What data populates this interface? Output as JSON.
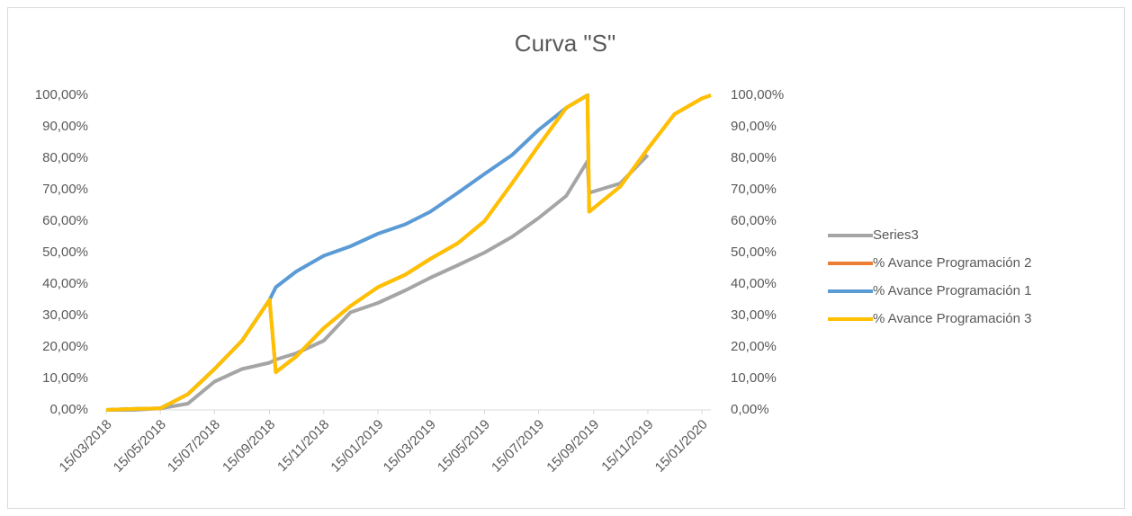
{
  "chart_data": {
    "type": "line",
    "title": "Curva \"S\"",
    "x": [
      "15/03/2018",
      "15/04/2018",
      "15/05/2018",
      "15/06/2018",
      "15/07/2018",
      "15/08/2018",
      "15/09/2018",
      "22/09/2018",
      "15/10/2018",
      "15/11/2018",
      "15/12/2018",
      "15/01/2019",
      "15/02/2019",
      "15/03/2019",
      "15/04/2019",
      "15/05/2019",
      "15/06/2019",
      "15/07/2019",
      "15/08/2019",
      "08/09/2019",
      "10/09/2019",
      "15/10/2019",
      "15/11/2019",
      "15/12/2019",
      "15/01/2020",
      "25/01/2020"
    ],
    "series": [
      {
        "name": "Series3",
        "color": "#a5a5a5",
        "values": [
          0,
          0,
          0.5,
          2,
          9,
          13,
          15,
          16,
          18,
          22,
          31,
          34,
          38,
          42,
          46,
          50,
          55,
          61,
          68,
          79,
          69,
          72,
          81,
          null,
          null,
          null
        ]
      },
      {
        "name": "% Avance Programación 2",
        "color": "#ed7d31",
        "values": [
          0,
          0.3,
          0.5,
          5,
          13,
          22,
          35,
          12,
          17,
          26,
          33,
          39,
          43,
          48,
          53,
          60,
          72,
          84,
          96,
          100,
          63,
          71,
          83,
          94,
          99,
          100
        ]
      },
      {
        "name": "% Avance Programación 1",
        "color": "#5b9bd5",
        "values": [
          0,
          0.3,
          0.5,
          5,
          13,
          22,
          35,
          39,
          44,
          49,
          52,
          56,
          59,
          63,
          69,
          75,
          81,
          89,
          96,
          100,
          100,
          null,
          null,
          null,
          null,
          null
        ]
      },
      {
        "name": "% Avance Programación 3",
        "color": "#ffc000",
        "values": [
          0,
          0.3,
          0.5,
          5,
          13,
          22,
          35,
          12,
          17,
          26,
          33,
          39,
          43,
          48,
          53,
          60,
          72,
          84,
          96,
          100,
          63,
          71,
          83,
          94,
          99,
          100
        ]
      }
    ],
    "xlim": [
      "15/03/2018",
      "25/01/2020"
    ],
    "xticks": [
      "15/03/2018",
      "15/05/2018",
      "15/07/2018",
      "15/09/2018",
      "15/11/2018",
      "15/01/2019",
      "15/03/2019",
      "15/05/2019",
      "15/07/2019",
      "15/09/2019",
      "15/11/2019",
      "15/01/2020"
    ],
    "ylim": [
      0,
      100
    ],
    "yticks": [
      {
        "value": 0,
        "label": "0,00%"
      },
      {
        "value": 10,
        "label": "10,00%"
      },
      {
        "value": 20,
        "label": "20,00%"
      },
      {
        "value": 30,
        "label": "30,00%"
      },
      {
        "value": 40,
        "label": "40,00%"
      },
      {
        "value": 50,
        "label": "50,00%"
      },
      {
        "value": 60,
        "label": "60,00%"
      },
      {
        "value": 70,
        "label": "70,00%"
      },
      {
        "value": 80,
        "label": "80,00%"
      },
      {
        "value": 90,
        "label": "90,00%"
      },
      {
        "value": 100,
        "label": "100,00%"
      }
    ],
    "y2lim": [
      0,
      100
    ],
    "y2ticks": [
      {
        "value": 0,
        "label": "0,00%"
      },
      {
        "value": 10,
        "label": "10,00%"
      },
      {
        "value": 20,
        "label": "20,00%"
      },
      {
        "value": 30,
        "label": "30,00%"
      },
      {
        "value": 40,
        "label": "40,00%"
      },
      {
        "value": 50,
        "label": "50,00%"
      },
      {
        "value": 60,
        "label": "60,00%"
      },
      {
        "value": 70,
        "label": "70,00%"
      },
      {
        "value": 80,
        "label": "80,00%"
      },
      {
        "value": 90,
        "label": "90,00%"
      },
      {
        "value": 100,
        "label": "100,00%"
      }
    ],
    "legend": "right"
  }
}
